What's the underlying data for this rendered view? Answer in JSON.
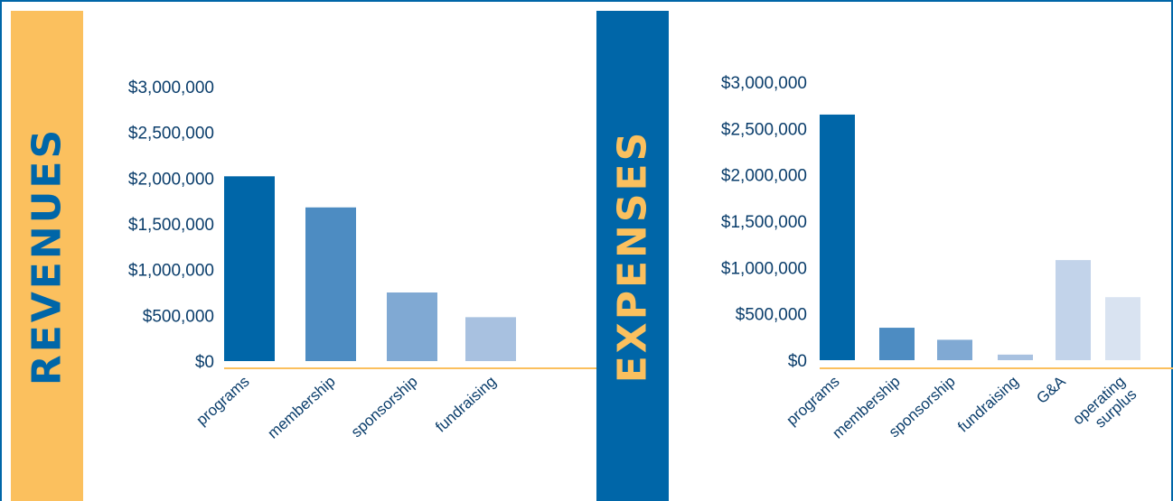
{
  "revenues_label": "REVENUES",
  "expenses_label": "EXPENSES",
  "colors": {
    "navy": "#0066a8",
    "gold": "#fbc05e",
    "axis_line": "#fbc05e",
    "text": "#0a3d6b"
  },
  "chart_data": [
    {
      "type": "bar",
      "title": "REVENUES",
      "categories": [
        "programs",
        "membership",
        "sponsorship",
        "fundraising"
      ],
      "values": [
        2020000,
        1680000,
        750000,
        480000
      ],
      "bar_colors": [
        "#0066a8",
        "#4d8cc2",
        "#80a9d3",
        "#a8c1e0"
      ],
      "yticks": [
        "$0",
        "$500,000",
        "$1,000,000",
        "$1,500,000",
        "$2,000,000",
        "$2,500,000",
        "$3,000,000"
      ],
      "ylim": [
        0,
        3000000
      ],
      "grid": false,
      "xlabel": "",
      "ylabel": ""
    },
    {
      "type": "bar",
      "title": "EXPENSES",
      "categories": [
        "programs",
        "membership",
        "sponsorship",
        "fundraising",
        "G&A",
        "operating surplus"
      ],
      "values": [
        2650000,
        350000,
        220000,
        60000,
        1080000,
        680000
      ],
      "bar_colors": [
        "#0066a8",
        "#4d8cc2",
        "#80a9d3",
        "#a8c1e0",
        "#c2d3ea",
        "#d9e3f1"
      ],
      "yticks": [
        "$0",
        "$500,000",
        "$1,000,000",
        "$1,500,000",
        "$2,000,000",
        "$2,500,000",
        "$3,000,000"
      ],
      "ylim": [
        0,
        3000000
      ],
      "grid": false,
      "xlabel": "",
      "ylabel": ""
    }
  ]
}
